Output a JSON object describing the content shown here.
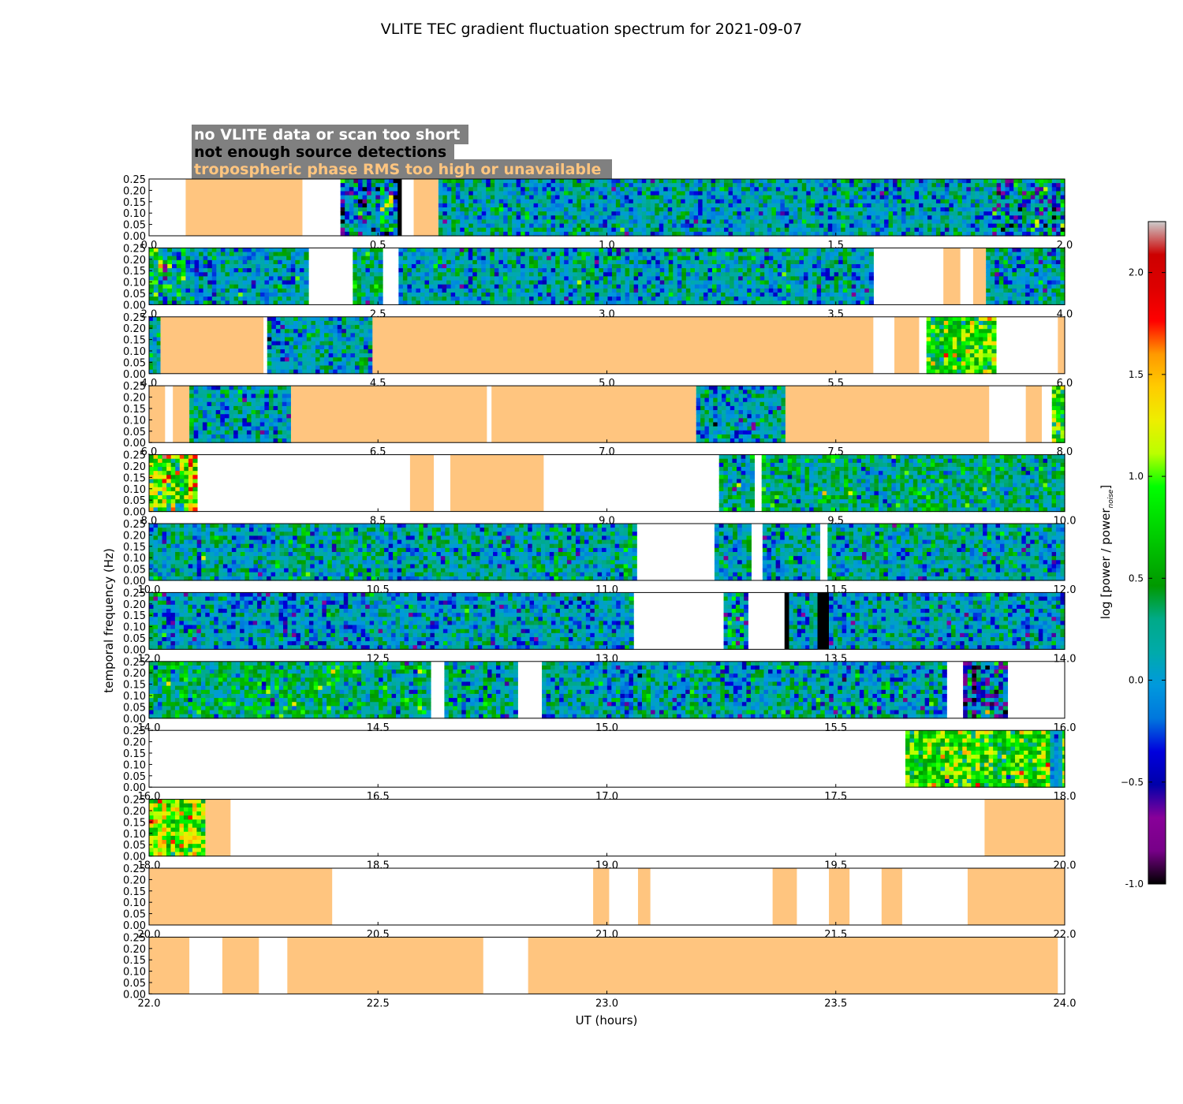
{
  "figure": {
    "title": "VLITE TEC gradient fluctuation spectrum for 2021-09-07",
    "xlabel": "UT (hours)",
    "ylabel": "temporal frequency (Hz)",
    "colorbar_label": "log [power / power",
    "colorbar_label_sub": "noise",
    "colorbar_label_end": "]"
  },
  "legend": [
    {
      "text": "no VLITE data or scan too short",
      "color": "#ffffff",
      "meaning": "none"
    },
    {
      "text": "not enough source detections",
      "color": "#000000",
      "meaning": "black"
    },
    {
      "text": "tropospheric phase RMS too high or unavailable",
      "color": "#ffc57f",
      "meaning": "orange"
    }
  ],
  "colors": {
    "legend_box": "#808080",
    "no_data": "#ffffff",
    "not_enough_detections": "#000000",
    "troposphere": "#ffc57f"
  },
  "chart_data": {
    "type": "heatmap",
    "ylim": [
      0.0,
      0.25
    ],
    "yticks": [
      "0.00",
      "0.05",
      "0.10",
      "0.15",
      "0.20",
      "0.25"
    ],
    "colorbar": {
      "range": [
        -1.0,
        2.25
      ],
      "ticks": [
        "-1.0",
        "−0.5",
        "0.0",
        "0.5",
        "1.0",
        "1.5",
        "2.0"
      ],
      "colormap": "nipy_spectral"
    },
    "panels": [
      {
        "start": 0.0,
        "end": 2.0,
        "ticks": [
          "0.0",
          "0.5",
          "1.0",
          "1.5",
          "2.0"
        ],
        "segments": [
          {
            "s": 0.0,
            "e": 0.08,
            "t": "none"
          },
          {
            "s": 0.08,
            "e": 0.335,
            "t": "orange"
          },
          {
            "s": 0.335,
            "e": 0.418,
            "t": "none"
          },
          {
            "s": 0.418,
            "e": 0.543,
            "t": "data",
            "mean": 0.0,
            "std": 0.5
          },
          {
            "s": 0.543,
            "e": 0.552,
            "t": "black"
          },
          {
            "s": 0.552,
            "e": 0.578,
            "t": "none"
          },
          {
            "s": 0.578,
            "e": 0.632,
            "t": "orange"
          },
          {
            "s": 0.632,
            "e": 1.842,
            "t": "data",
            "mean": 0.1,
            "std": 0.27
          },
          {
            "s": 1.842,
            "e": 2.0,
            "t": "data",
            "mean": -0.05,
            "std": 0.45
          }
        ]
      },
      {
        "start": 2.0,
        "end": 4.0,
        "ticks": [
          "2.0",
          "2.5",
          "3.0",
          "3.5",
          "4.0"
        ],
        "segments": [
          {
            "s": 2.0,
            "e": 2.08,
            "t": "data",
            "mean": 0.3,
            "std": 0.45
          },
          {
            "s": 2.08,
            "e": 2.348,
            "t": "data",
            "mean": 0.1,
            "std": 0.27
          },
          {
            "s": 2.348,
            "e": 2.445,
            "t": "none"
          },
          {
            "s": 2.445,
            "e": 2.51,
            "t": "data",
            "mean": 0.25,
            "std": 0.3
          },
          {
            "s": 2.51,
            "e": 2.545,
            "t": "none"
          },
          {
            "s": 2.545,
            "e": 3.582,
            "t": "data",
            "mean": 0.1,
            "std": 0.27
          },
          {
            "s": 3.582,
            "e": 3.735,
            "t": "none"
          },
          {
            "s": 3.735,
            "e": 3.772,
            "t": "orange"
          },
          {
            "s": 3.772,
            "e": 3.8,
            "t": "none"
          },
          {
            "s": 3.8,
            "e": 3.828,
            "t": "orange"
          },
          {
            "s": 3.828,
            "e": 4.0,
            "t": "data",
            "mean": 0.1,
            "std": 0.3
          }
        ]
      },
      {
        "start": 4.0,
        "end": 6.0,
        "ticks": [
          "4.0",
          "4.5",
          "5.0",
          "5.5",
          "6.0"
        ],
        "segments": [
          {
            "s": 4.0,
            "e": 4.025,
            "t": "data",
            "mean": 0.3,
            "std": 0.25
          },
          {
            "s": 4.025,
            "e": 4.25,
            "t": "orange"
          },
          {
            "s": 4.25,
            "e": 4.258,
            "t": "none"
          },
          {
            "s": 4.258,
            "e": 4.488,
            "t": "data",
            "mean": 0.1,
            "std": 0.27
          },
          {
            "s": 4.488,
            "e": 5.582,
            "t": "orange"
          },
          {
            "s": 5.582,
            "e": 5.628,
            "t": "none"
          },
          {
            "s": 5.628,
            "e": 5.682,
            "t": "orange"
          },
          {
            "s": 5.682,
            "e": 5.698,
            "t": "none"
          },
          {
            "s": 5.698,
            "e": 5.85,
            "t": "data",
            "mean": 0.8,
            "std": 0.35
          },
          {
            "s": 5.85,
            "e": 5.985,
            "t": "none"
          },
          {
            "s": 5.985,
            "e": 6.0,
            "t": "orange"
          }
        ]
      },
      {
        "start": 6.0,
        "end": 8.0,
        "ticks": [
          "6.0",
          "6.5",
          "7.0",
          "7.5",
          "8.0"
        ],
        "segments": [
          {
            "s": 6.0,
            "e": 6.035,
            "t": "orange"
          },
          {
            "s": 6.035,
            "e": 6.052,
            "t": "none"
          },
          {
            "s": 6.052,
            "e": 6.088,
            "t": "orange"
          },
          {
            "s": 6.088,
            "e": 6.31,
            "t": "data",
            "mean": 0.1,
            "std": 0.27
          },
          {
            "s": 6.31,
            "e": 6.738,
            "t": "orange"
          },
          {
            "s": 6.738,
            "e": 6.748,
            "t": "none"
          },
          {
            "s": 6.748,
            "e": 7.195,
            "t": "orange"
          },
          {
            "s": 7.195,
            "e": 7.39,
            "t": "data",
            "mean": 0.1,
            "std": 0.3
          },
          {
            "s": 7.39,
            "e": 7.835,
            "t": "orange"
          },
          {
            "s": 7.835,
            "e": 7.915,
            "t": "none"
          },
          {
            "s": 7.915,
            "e": 7.95,
            "t": "orange"
          },
          {
            "s": 7.95,
            "e": 7.972,
            "t": "none"
          },
          {
            "s": 7.972,
            "e": 8.0,
            "t": "data",
            "mean": 1.0,
            "std": 0.4
          }
        ]
      },
      {
        "start": 8.0,
        "end": 10.0,
        "ticks": [
          "8.0",
          "8.5",
          "9.0",
          "9.5",
          "10.0"
        ],
        "segments": [
          {
            "s": 8.0,
            "e": 8.105,
            "t": "data",
            "mean": 1.0,
            "std": 0.45
          },
          {
            "s": 8.105,
            "e": 8.57,
            "t": "none"
          },
          {
            "s": 8.57,
            "e": 8.622,
            "t": "orange"
          },
          {
            "s": 8.622,
            "e": 8.658,
            "t": "none"
          },
          {
            "s": 8.658,
            "e": 8.862,
            "t": "orange"
          },
          {
            "s": 8.862,
            "e": 9.245,
            "t": "none"
          },
          {
            "s": 9.245,
            "e": 9.322,
            "t": "data",
            "mean": 0.15,
            "std": 0.3
          },
          {
            "s": 9.322,
            "e": 9.338,
            "t": "none"
          },
          {
            "s": 9.338,
            "e": 10.0,
            "t": "data",
            "mean": 0.25,
            "std": 0.27
          }
        ]
      },
      {
        "start": 10.0,
        "end": 12.0,
        "ticks": [
          "10.0",
          "10.5",
          "11.0",
          "11.5",
          "12.0"
        ],
        "segments": [
          {
            "s": 10.0,
            "e": 11.065,
            "t": "data",
            "mean": 0.15,
            "std": 0.27
          },
          {
            "s": 11.065,
            "e": 11.235,
            "t": "none"
          },
          {
            "s": 11.235,
            "e": 11.315,
            "t": "data",
            "mean": 0.2,
            "std": 0.3
          },
          {
            "s": 11.315,
            "e": 11.34,
            "t": "none"
          },
          {
            "s": 11.34,
            "e": 11.465,
            "t": "data",
            "mean": 0.15,
            "std": 0.28
          },
          {
            "s": 11.465,
            "e": 11.482,
            "t": "none"
          },
          {
            "s": 11.482,
            "e": 12.0,
            "t": "data",
            "mean": 0.15,
            "std": 0.27
          }
        ]
      },
      {
        "start": 12.0,
        "end": 14.0,
        "ticks": [
          "12.0",
          "12.5",
          "13.0",
          "13.5",
          "14.0"
        ],
        "segments": [
          {
            "s": 12.0,
            "e": 13.058,
            "t": "data",
            "mean": 0.05,
            "std": 0.27
          },
          {
            "s": 13.058,
            "e": 13.255,
            "t": "none"
          },
          {
            "s": 13.255,
            "e": 13.308,
            "t": "data",
            "mean": 0.1,
            "std": 0.45
          },
          {
            "s": 13.308,
            "e": 13.388,
            "t": "none"
          },
          {
            "s": 13.388,
            "e": 13.398,
            "t": "black"
          },
          {
            "s": 13.398,
            "e": 13.46,
            "t": "data",
            "mean": 0.05,
            "std": 0.25
          },
          {
            "s": 13.46,
            "e": 13.485,
            "t": "black"
          },
          {
            "s": 13.485,
            "e": 14.0,
            "t": "data",
            "mean": 0.05,
            "std": 0.27
          }
        ]
      },
      {
        "start": 14.0,
        "end": 16.0,
        "ticks": [
          "14.0",
          "14.5",
          "15.0",
          "15.5",
          "16.0"
        ],
        "segments": [
          {
            "s": 14.0,
            "e": 14.615,
            "t": "data",
            "mean": 0.35,
            "std": 0.3
          },
          {
            "s": 14.615,
            "e": 14.645,
            "t": "none"
          },
          {
            "s": 14.645,
            "e": 14.805,
            "t": "data",
            "mean": 0.2,
            "std": 0.3
          },
          {
            "s": 14.805,
            "e": 14.858,
            "t": "none"
          },
          {
            "s": 14.858,
            "e": 15.742,
            "t": "data",
            "mean": 0.1,
            "std": 0.3
          },
          {
            "s": 15.742,
            "e": 15.778,
            "t": "none"
          },
          {
            "s": 15.778,
            "e": 15.875,
            "t": "data",
            "mean": -0.1,
            "std": 0.5
          },
          {
            "s": 15.875,
            "e": 16.0,
            "t": "none"
          }
        ]
      },
      {
        "start": 16.0,
        "end": 18.0,
        "ticks": [
          "16.0",
          "16.5",
          "17.0",
          "17.5",
          "18.0"
        ],
        "segments": [
          {
            "s": 16.0,
            "e": 17.652,
            "t": "none"
          },
          {
            "s": 17.652,
            "e": 17.968,
            "t": "data",
            "mean": 0.8,
            "std": 0.35
          },
          {
            "s": 17.968,
            "e": 17.995,
            "t": "data",
            "mean": 0.05,
            "std": 0.15
          },
          {
            "s": 17.995,
            "e": 18.0,
            "t": "data",
            "mean": 0.9,
            "std": 0.3
          }
        ]
      },
      {
        "start": 18.0,
        "end": 20.0,
        "ticks": [
          "18.0",
          "18.5",
          "19.0",
          "19.5",
          "20.0"
        ],
        "segments": [
          {
            "s": 18.0,
            "e": 18.123,
            "t": "data",
            "mean": 1.0,
            "std": 0.35
          },
          {
            "s": 18.123,
            "e": 18.178,
            "t": "orange"
          },
          {
            "s": 18.178,
            "e": 19.825,
            "t": "none"
          },
          {
            "s": 19.825,
            "e": 20.0,
            "t": "orange"
          }
        ]
      },
      {
        "start": 20.0,
        "end": 22.0,
        "ticks": [
          "20.0",
          "20.5",
          "21.0",
          "21.5",
          "22.0"
        ],
        "segments": [
          {
            "s": 20.0,
            "e": 20.4,
            "t": "orange"
          },
          {
            "s": 20.4,
            "e": 20.97,
            "t": "none"
          },
          {
            "s": 20.97,
            "e": 21.005,
            "t": "orange"
          },
          {
            "s": 21.005,
            "e": 21.068,
            "t": "none"
          },
          {
            "s": 21.068,
            "e": 21.095,
            "t": "orange"
          },
          {
            "s": 21.095,
            "e": 21.362,
            "t": "none"
          },
          {
            "s": 21.362,
            "e": 21.415,
            "t": "orange"
          },
          {
            "s": 21.415,
            "e": 21.485,
            "t": "none"
          },
          {
            "s": 21.485,
            "e": 21.53,
            "t": "orange"
          },
          {
            "s": 21.53,
            "e": 21.6,
            "t": "none"
          },
          {
            "s": 21.6,
            "e": 21.645,
            "t": "orange"
          },
          {
            "s": 21.645,
            "e": 21.788,
            "t": "none"
          },
          {
            "s": 21.788,
            "e": 22.0,
            "t": "orange"
          }
        ]
      },
      {
        "start": 22.0,
        "end": 24.0,
        "ticks": [
          "22.0",
          "22.5",
          "23.0",
          "23.5",
          "24.0"
        ],
        "segments": [
          {
            "s": 22.0,
            "e": 22.088,
            "t": "orange"
          },
          {
            "s": 22.088,
            "e": 22.16,
            "t": "none"
          },
          {
            "s": 22.16,
            "e": 22.24,
            "t": "orange"
          },
          {
            "s": 22.24,
            "e": 22.302,
            "t": "none"
          },
          {
            "s": 22.302,
            "e": 22.73,
            "t": "orange"
          },
          {
            "s": 22.73,
            "e": 22.828,
            "t": "none"
          },
          {
            "s": 22.828,
            "e": 23.985,
            "t": "orange"
          },
          {
            "s": 23.985,
            "e": 24.0,
            "t": "none"
          }
        ]
      }
    ]
  }
}
